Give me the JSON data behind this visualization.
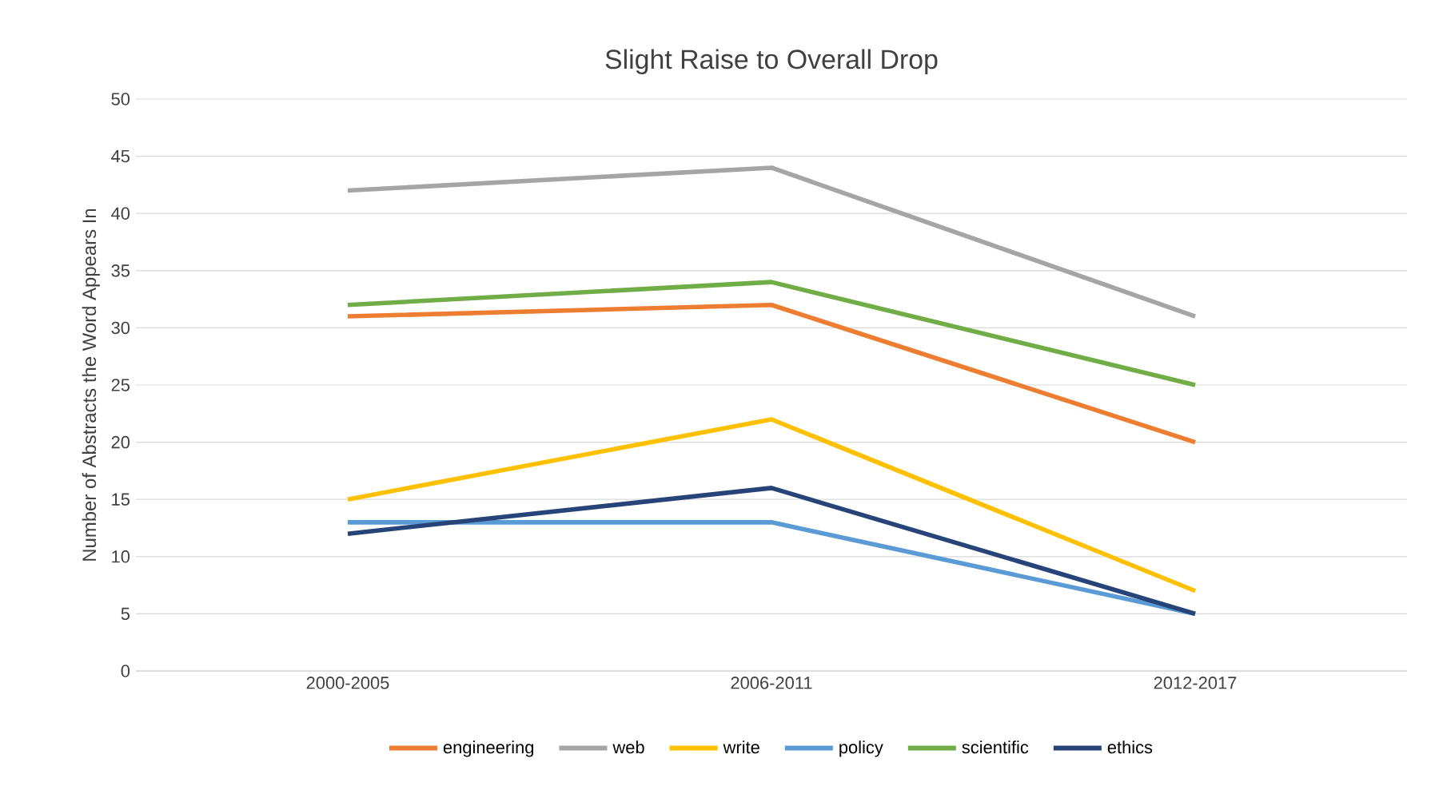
{
  "chart_data": {
    "type": "line",
    "title": "Slight Raise to Overall Drop",
    "ylabel": "Number of Abstracts the Word Appears In",
    "categories": [
      "2000-2005",
      "2006-2011",
      "2012-2017"
    ],
    "series": [
      {
        "name": "engineering",
        "color": "#ed7d31",
        "values": [
          31,
          32,
          20
        ]
      },
      {
        "name": "web",
        "color": "#a5a5a5",
        "values": [
          42,
          44,
          31
        ]
      },
      {
        "name": "write",
        "color": "#ffc000",
        "values": [
          15,
          22,
          7
        ]
      },
      {
        "name": "policy",
        "color": "#5b9bd5",
        "values": [
          13,
          13,
          5
        ]
      },
      {
        "name": "scientific",
        "color": "#70ad47",
        "values": [
          32,
          34,
          25
        ]
      },
      {
        "name": "ethics",
        "color": "#264478",
        "values": [
          12,
          16,
          5
        ]
      }
    ],
    "ylim": [
      0,
      50
    ],
    "yticks": [
      0,
      5,
      10,
      15,
      20,
      25,
      30,
      35,
      40,
      45,
      50
    ],
    "grid": "y",
    "legend": "bottom",
    "marker": "none",
    "line_style": "solid"
  }
}
